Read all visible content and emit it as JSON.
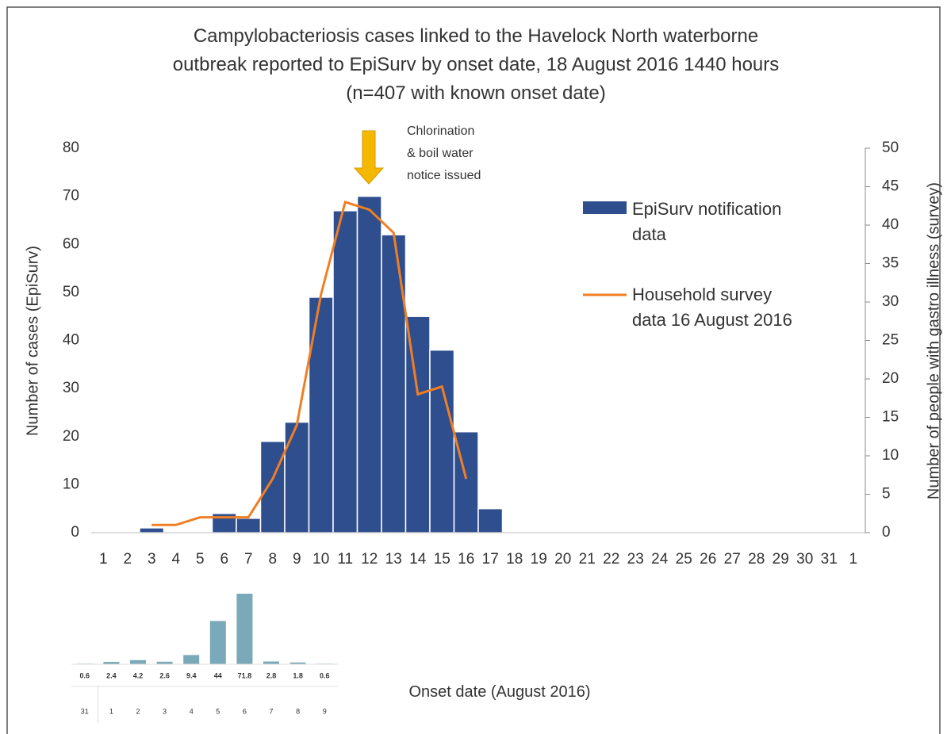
{
  "chart_data": [
    {
      "type": "bar",
      "title": "Campylobacteriosis cases linked to the Havelock North waterborne\noutbreak reported to EpiSurv by onset date, 18 August 2016 1440 hours\n(n=407 with known onset date)",
      "xlabel": "Onset date (August 2016)",
      "ylabel": "Number of cases (EpiSurv)",
      "y2label": "Number of people with gastro illness (survey)",
      "annotation": "Chlorination\n& boil water\nnotice issued",
      "categories": [
        "1",
        "2",
        "3",
        "4",
        "5",
        "6",
        "7",
        "8",
        "9",
        "10",
        "11",
        "12",
        "13",
        "14",
        "15",
        "16",
        "17",
        "18",
        "19",
        "20",
        "21",
        "22",
        "23",
        "24",
        "25",
        "26",
        "27",
        "28",
        "29",
        "30",
        "31",
        "1"
      ],
      "series": [
        {
          "name": "EpiSurv notification data",
          "kind": "bar",
          "color": "#2f4e8e",
          "values": [
            0,
            0,
            1,
            0,
            0,
            4,
            3,
            19,
            23,
            49,
            67,
            70,
            62,
            45,
            38,
            21,
            5,
            0,
            0,
            0,
            0,
            0,
            0,
            0,
            0,
            0,
            0,
            0,
            0,
            0,
            0,
            0
          ]
        },
        {
          "name": "Household survey data 16 August 2016",
          "kind": "line",
          "axis": "y2",
          "color": "#f07f23",
          "values": [
            null,
            null,
            1,
            1,
            2,
            2,
            2,
            7,
            14,
            31,
            43,
            42,
            39,
            18,
            19,
            7,
            null,
            null,
            null,
            null,
            null,
            null,
            null,
            null,
            null,
            null,
            null,
            null,
            null,
            null,
            null,
            null
          ]
        }
      ],
      "ylim": [
        0,
        80
      ],
      "yticks": [
        0,
        10,
        20,
        30,
        40,
        50,
        60,
        70,
        80
      ],
      "y2lim": [
        0,
        50
      ],
      "y2ticks": [
        0,
        5,
        10,
        15,
        20,
        25,
        30,
        35,
        40,
        45,
        50
      ]
    },
    {
      "type": "bar",
      "categories": [
        "31",
        "1",
        "2",
        "3",
        "4",
        "5",
        "6",
        "7",
        "8",
        "9"
      ],
      "values": [
        0.6,
        2.4,
        4.2,
        2.6,
        9.4,
        44,
        71.8,
        2.8,
        1.8,
        0.6
      ],
      "color": "#7aa9b9"
    }
  ]
}
